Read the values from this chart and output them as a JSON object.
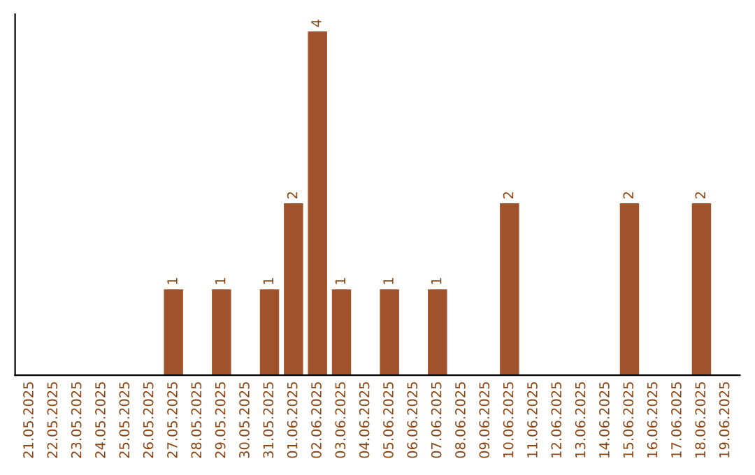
{
  "chart_data": {
    "type": "bar",
    "categories": [
      "21.05.2025",
      "22.05.2025",
      "23.05.2025",
      "24.05.2025",
      "25.05.2025",
      "26.05.2025",
      "27.05.2025",
      "28.05.2025",
      "29.05.2025",
      "30.05.2025",
      "31.05.2025",
      "01.06.2025",
      "02.06.2025",
      "03.06.2025",
      "04.06.2025",
      "05.06.2025",
      "06.06.2025",
      "07.06.2025",
      "08.06.2025",
      "09.06.2025",
      "10.06.2025",
      "11.06.2025",
      "12.06.2025",
      "13.06.2025",
      "14.06.2025",
      "15.06.2025",
      "16.06.2025",
      "17.06.2025",
      "18.06.2025",
      "19.06.2025"
    ],
    "values": [
      0,
      0,
      0,
      0,
      0,
      0,
      1,
      0,
      1,
      0,
      1,
      2,
      4,
      1,
      0,
      1,
      0,
      1,
      0,
      0,
      2,
      0,
      0,
      0,
      0,
      2,
      0,
      0,
      2,
      0
    ],
    "value_labels": [
      null,
      null,
      null,
      null,
      null,
      null,
      "1",
      null,
      "1",
      null,
      "1",
      "2",
      "4",
      "1",
      null,
      "1",
      null,
      "1",
      null,
      null,
      "2",
      null,
      null,
      null,
      null,
      "2",
      null,
      null,
      "2",
      null
    ],
    "color": "#a0522d",
    "grid": false,
    "legend": false,
    "tick_labels": "x"
  }
}
